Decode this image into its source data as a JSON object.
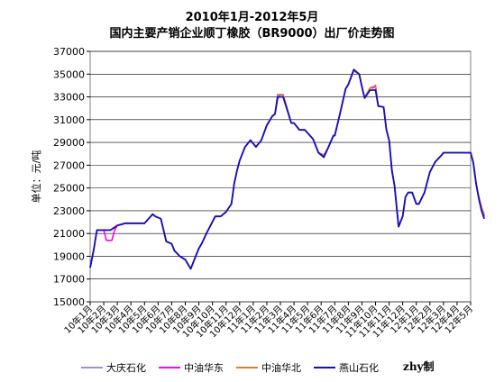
{
  "chart_data": {
    "type": "line",
    "title": "2010年1月-2012年5月",
    "subtitle": "国内主要产销企业顺丁橡胶（BR9000）出厂价走势图",
    "ylabel": "单位：元/吨",
    "xlabel": "",
    "ylim": [
      15000,
      37000
    ],
    "yticks": [
      15000,
      17000,
      19000,
      21000,
      23000,
      25000,
      27000,
      29000,
      31000,
      33000,
      35000,
      37000
    ],
    "xticks": [
      "10年1月",
      "10年2月",
      "10年3月",
      "10年4月",
      "10年5月",
      "10年6月",
      "10年7月",
      "10年8月",
      "10年9月",
      "10年10月",
      "10年11月",
      "10年12月",
      "11年1月",
      "11年2月",
      "11年3月",
      "11年4月",
      "11年5月",
      "11年6月",
      "11年7月",
      "11年8月",
      "11年9月",
      "11年10月",
      "11年11月",
      "11年12月",
      "12年1月",
      "12年2月",
      "12年3月",
      "12年4月",
      "12年5月"
    ],
    "xtick_units": "month index, 0 = 10年1月",
    "grid": true,
    "legend_position": "bottom",
    "series": [
      {
        "name": "大庆石化",
        "color": "#a78bd8",
        "x": [
          0,
          0.25,
          0.5,
          0.75,
          1.0,
          1.5,
          2.0,
          2.6,
          3.0,
          4.0,
          4.6,
          4.8,
          5.2,
          5.6,
          6.0,
          6.2,
          6.6,
          7.0,
          7.4,
          8.0,
          8.2,
          8.6,
          9.2,
          9.6,
          10.0,
          10.4,
          10.6,
          10.8,
          11.0,
          11.4,
          11.8,
          12.2,
          12.6,
          13.0,
          13.4,
          13.6,
          13.8,
          14.0,
          14.2,
          14.8,
          15.0,
          15.4,
          15.8,
          16.4,
          16.8,
          17.2,
          17.5,
          17.9,
          18.0,
          18.4,
          18.8,
          19.0,
          19.4,
          19.8,
          20.0,
          20.2,
          20.6,
          20.8,
          21.0,
          21.2,
          21.6,
          21.8,
          22.0,
          22.2,
          22.4,
          22.7,
          23.0,
          23.2,
          23.4,
          23.7,
          24.0,
          24.2,
          24.4,
          24.6,
          25.0,
          25.4,
          25.8,
          26.0,
          26.4,
          26.8,
          27.6,
          28.0,
          28.2,
          28.4,
          28.6,
          28.8,
          29.0
        ],
        "values": [
          18000,
          19500,
          21300,
          21300,
          21300,
          21300,
          21700,
          21900,
          21900,
          21900,
          22700,
          22500,
          22300,
          20300,
          20100,
          19500,
          19000,
          18700,
          17900,
          19700,
          20100,
          21100,
          22500,
          22500,
          22900,
          23600,
          25400,
          26500,
          27400,
          28600,
          29200,
          28600,
          29200,
          30500,
          31300,
          31500,
          32800,
          33200,
          33200,
          30700,
          30700,
          30100,
          30100,
          29300,
          28100,
          27900,
          28500,
          29600,
          29600,
          31600,
          33700,
          34100,
          35300,
          35000,
          33900,
          32900,
          33800,
          33800,
          33800,
          32200,
          32100,
          30100,
          29200,
          26600,
          25200,
          21600,
          22500,
          24200,
          24600,
          24600,
          23600,
          23600,
          24100,
          24600,
          26400,
          27300,
          27800,
          28100,
          28100,
          28100,
          28100,
          28100,
          27200,
          25400,
          24100,
          23300,
          22500
        ]
      },
      {
        "name": "中油华东",
        "color": "#ff00ff",
        "x": [
          0,
          0.25,
          0.5,
          0.75,
          1.0,
          1.2,
          1.6,
          1.8,
          2.0,
          2.6,
          3.0,
          4.0,
          4.6,
          4.8,
          5.2,
          5.6,
          6.0,
          6.2,
          6.6,
          7.0,
          7.4,
          8.0,
          8.2,
          8.6,
          9.2,
          9.6,
          10.0,
          10.4,
          10.6,
          10.8,
          11.0,
          11.4,
          11.8,
          12.2,
          12.6,
          13.0,
          13.4,
          13.6,
          13.8,
          14.0,
          14.2,
          14.8,
          15.0,
          15.4,
          15.8,
          16.4,
          16.8,
          17.2,
          17.5,
          17.9,
          18.0,
          18.4,
          18.8,
          19.0,
          19.4,
          19.8,
          20.0,
          20.2,
          20.6,
          20.8,
          21.0,
          21.2,
          21.6,
          21.8,
          22.0,
          22.2,
          22.4,
          22.7,
          23.0,
          23.2,
          23.4,
          23.7,
          24.0,
          24.2,
          24.4,
          24.6,
          25.0,
          25.4,
          25.8,
          26.0,
          26.4,
          26.8,
          27.6,
          28.0,
          28.2,
          28.4,
          28.6,
          28.8,
          29.0
        ],
        "values": [
          18000,
          19500,
          21300,
          21300,
          21300,
          20400,
          20400,
          21300,
          21700,
          21900,
          21900,
          21900,
          22700,
          22500,
          22300,
          20300,
          20100,
          19500,
          19000,
          18700,
          17900,
          19700,
          20100,
          21100,
          22500,
          22500,
          22900,
          23600,
          25400,
          26500,
          27400,
          28600,
          29200,
          28600,
          29200,
          30500,
          31300,
          31500,
          33200,
          33200,
          33200,
          30700,
          30700,
          30100,
          30100,
          29300,
          28100,
          27900,
          28500,
          29600,
          29600,
          31600,
          33700,
          34100,
          35300,
          35000,
          33900,
          32900,
          33800,
          33800,
          34000,
          32200,
          32100,
          30100,
          29200,
          26600,
          25200,
          21600,
          22500,
          24200,
          24600,
          24600,
          23600,
          23600,
          24100,
          24600,
          26400,
          27300,
          27800,
          28100,
          28100,
          28100,
          28100,
          28100,
          27200,
          25400,
          24100,
          23300,
          22500
        ]
      },
      {
        "name": "中油华北",
        "color": "#f07820",
        "x": [
          0,
          0.25,
          0.5,
          0.75,
          1.0,
          1.5,
          2.0,
          2.6,
          3.0,
          4.0,
          4.6,
          4.8,
          5.2,
          5.6,
          6.0,
          6.2,
          6.6,
          7.0,
          7.4,
          8.0,
          8.2,
          8.6,
          9.2,
          9.6,
          10.0,
          10.4,
          10.6,
          10.8,
          11.0,
          11.4,
          11.8,
          12.2,
          12.6,
          13.0,
          13.4,
          13.6,
          13.8,
          14.0,
          14.2,
          14.8,
          15.0,
          15.4,
          15.8,
          16.4,
          16.8,
          17.2,
          17.5,
          17.9,
          18.0,
          18.4,
          18.8,
          19.0,
          19.4,
          19.8,
          20.0,
          20.2,
          20.6,
          20.8,
          21.0,
          21.2,
          21.6,
          21.8,
          22.0,
          22.2,
          22.4,
          22.7,
          23.0,
          23.2,
          23.4,
          23.7,
          24.0,
          24.2,
          24.4,
          24.6,
          25.0,
          25.4,
          25.8,
          26.0,
          26.4,
          26.8,
          27.6,
          28.0,
          28.2,
          28.4,
          28.6,
          28.8,
          29.0
        ],
        "values": [
          18000,
          19500,
          21300,
          21300,
          21300,
          21300,
          21700,
          21900,
          21900,
          21900,
          22700,
          22500,
          22300,
          20300,
          20100,
          19500,
          19000,
          18700,
          17900,
          19700,
          20100,
          21100,
          22500,
          22500,
          22900,
          23600,
          25400,
          26500,
          27400,
          28600,
          29200,
          28600,
          29200,
          30500,
          31300,
          31500,
          33200,
          33200,
          33200,
          30700,
          30700,
          30100,
          30100,
          29300,
          28100,
          27900,
          28500,
          29600,
          29600,
          31600,
          33700,
          34100,
          35300,
          35000,
          33900,
          32900,
          33800,
          33900,
          33900,
          32200,
          32100,
          30100,
          29200,
          26400,
          25200,
          21600,
          22500,
          24200,
          24600,
          24600,
          23600,
          23600,
          24100,
          24600,
          26400,
          27300,
          27800,
          28100,
          28100,
          28100,
          28100,
          28100,
          27200,
          25400,
          24300,
          23300,
          22700
        ]
      },
      {
        "name": "燕山石化",
        "color": "#1010c0",
        "x": [
          0,
          0.25,
          0.5,
          0.75,
          1.0,
          1.5,
          2.0,
          2.6,
          3.0,
          4.0,
          4.6,
          4.8,
          5.2,
          5.6,
          6.0,
          6.2,
          6.6,
          7.0,
          7.4,
          8.0,
          8.2,
          8.6,
          9.2,
          9.6,
          10.0,
          10.4,
          10.6,
          10.8,
          11.0,
          11.4,
          11.8,
          12.2,
          12.6,
          13.0,
          13.4,
          13.6,
          13.8,
          14.0,
          14.2,
          14.8,
          15.0,
          15.4,
          15.8,
          16.4,
          16.8,
          17.2,
          17.5,
          17.9,
          18.0,
          18.4,
          18.8,
          19.0,
          19.4,
          19.8,
          20.0,
          20.2,
          20.6,
          20.8,
          21.0,
          21.2,
          21.6,
          21.8,
          22.0,
          22.2,
          22.4,
          22.7,
          23.0,
          23.2,
          23.4,
          23.7,
          24.0,
          24.2,
          24.4,
          24.6,
          25.0,
          25.4,
          25.8,
          26.0,
          26.4,
          26.8,
          27.6,
          28.0,
          28.2,
          28.4,
          28.6,
          28.8,
          29.0
        ],
        "values": [
          18000,
          19500,
          21300,
          21300,
          21300,
          21300,
          21700,
          21900,
          21900,
          21900,
          22700,
          22500,
          22300,
          20300,
          20100,
          19500,
          19000,
          18700,
          17900,
          19700,
          20100,
          21100,
          22500,
          22500,
          22900,
          23600,
          25400,
          26500,
          27400,
          28600,
          29200,
          28600,
          29200,
          30500,
          31300,
          31500,
          33000,
          33000,
          33000,
          30700,
          30700,
          30100,
          30100,
          29300,
          28100,
          27700,
          28500,
          29600,
          29600,
          31600,
          33700,
          34100,
          35400,
          35000,
          33900,
          32900,
          33600,
          33600,
          33600,
          32200,
          32100,
          30100,
          29200,
          26600,
          25200,
          21600,
          22500,
          24200,
          24600,
          24600,
          23600,
          23600,
          24100,
          24600,
          26400,
          27300,
          27800,
          28100,
          28100,
          28100,
          28100,
          28100,
          27200,
          25400,
          24100,
          23000,
          22300
        ]
      }
    ]
  },
  "credit": "zhy制"
}
